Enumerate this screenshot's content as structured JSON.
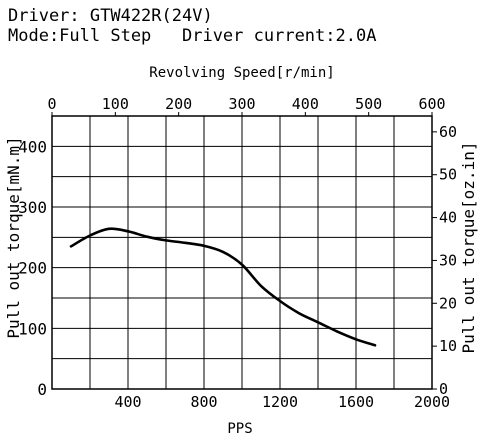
{
  "header": {
    "line1": "Driver: GTW422R(24V)",
    "line2": "Mode:Full Step   Driver current:2.0A"
  },
  "chart_data": {
    "type": "line",
    "title": "",
    "xlabel": "PPS",
    "ylabel": "Pull out torque[mN.m]",
    "ylabel_right": "Pull out torque[oz.in]",
    "xlabel_top": "Revolving  Speed[r/min]",
    "xlim": [
      0,
      2000
    ],
    "ylim": [
      0,
      450
    ],
    "xlim_top": [
      0,
      600
    ],
    "ylim_right": [
      0,
      63.7
    ],
    "x_ticks": [
      400,
      800,
      1200,
      1600,
      2000
    ],
    "x_tick_labels": [
      "400",
      "800",
      "1200",
      "1600",
      "2000"
    ],
    "y_ticks": [
      0,
      100,
      200,
      300,
      400
    ],
    "y_tick_labels": [
      "0",
      "100",
      "200",
      "300",
      "400"
    ],
    "top_ticks": [
      0,
      100,
      200,
      300,
      400,
      500,
      600
    ],
    "top_tick_labels": [
      "0",
      "100",
      "200",
      "300",
      "400",
      "500",
      "600"
    ],
    "right_ticks": [
      0,
      10,
      20,
      30,
      40,
      50,
      60
    ],
    "right_tick_labels": [
      "0",
      "10",
      "20",
      "30",
      "40",
      "50",
      "60"
    ],
    "grid": true,
    "x_grid": [
      200,
      400,
      600,
      800,
      1000,
      1200,
      1400,
      1600,
      1800
    ],
    "y_grid": [
      0,
      50,
      100,
      150,
      200,
      250,
      300,
      350,
      400,
      450
    ],
    "series": [
      {
        "x": [
          100,
          200,
          300,
          400,
          500,
          600,
          700,
          800,
          900,
          1000,
          1100,
          1200,
          1300,
          1400,
          1500,
          1600,
          1700
        ],
        "y": [
          235,
          253,
          264,
          260,
          251,
          245,
          241,
          236,
          226,
          205,
          170,
          145,
          125,
          110,
          95,
          82,
          72
        ]
      }
    ]
  }
}
